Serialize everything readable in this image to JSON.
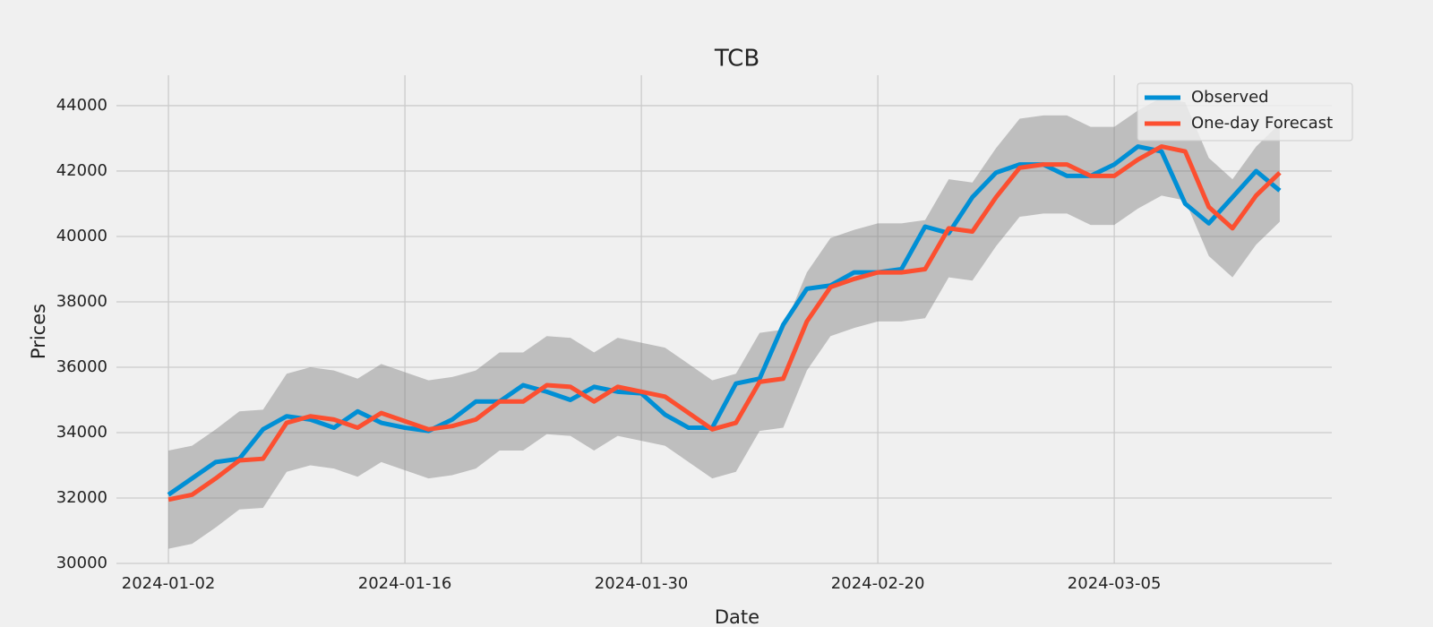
{
  "chart_data": {
    "type": "line",
    "title": "TCB",
    "x_label": "Date",
    "y_label": "Prices",
    "categories": [
      "2024-01-02",
      null,
      null,
      null,
      null,
      null,
      null,
      null,
      null,
      null,
      "2024-01-16",
      null,
      null,
      null,
      null,
      null,
      null,
      null,
      null,
      null,
      "2024-01-30",
      null,
      null,
      null,
      null,
      null,
      null,
      null,
      null,
      null,
      "2024-02-20",
      null,
      null,
      null,
      null,
      null,
      null,
      null,
      null,
      null,
      "2024-03-05",
      null,
      null,
      null,
      null,
      null,
      null,
      null
    ],
    "series": [
      {
        "name": "Observed",
        "color": "#008fd5",
        "values": [
          32100,
          32600,
          33100,
          33200,
          34100,
          34500,
          34400,
          34150,
          34650,
          34300,
          34150,
          34050,
          34400,
          34950,
          34950,
          35450,
          35250,
          35000,
          35400,
          35250,
          35200,
          34550,
          34150,
          34150,
          35500,
          35650,
          37300,
          38400,
          38500,
          38900,
          38900,
          39000,
          40300,
          40100,
          41200,
          41950,
          42200,
          42200,
          41850,
          41850,
          42200,
          42750,
          42600,
          41000,
          40400,
          41200,
          42000,
          41400
        ]
      },
      {
        "name": "One-day Forecast",
        "color": "#fc4f30",
        "values": [
          31950,
          32100,
          32600,
          33150,
          33200,
          34300,
          34500,
          34400,
          34150,
          34600,
          34350,
          34100,
          34200,
          34400,
          34950,
          34950,
          35450,
          35400,
          34950,
          35400,
          35250,
          35100,
          34600,
          34100,
          34300,
          35550,
          35650,
          37400,
          38450,
          38700,
          38900,
          38900,
          39000,
          40250,
          40150,
          41200,
          42100,
          42200,
          42200,
          41850,
          41850,
          42350,
          42750,
          42600,
          40900,
          40250,
          41250,
          41950
        ]
      }
    ],
    "band": {
      "color": "#808080",
      "lower": [
        30450,
        30600,
        31100,
        31650,
        31700,
        32800,
        33000,
        32900,
        32650,
        33100,
        32850,
        32600,
        32700,
        32900,
        33450,
        33450,
        33950,
        33900,
        33450,
        33900,
        33750,
        33600,
        33100,
        32600,
        32800,
        34050,
        34150,
        35900,
        36950,
        37200,
        37400,
        37400,
        37500,
        38750,
        38650,
        39700,
        40600,
        40700,
        40700,
        40350,
        40350,
        40850,
        41250,
        41100,
        39400,
        38750,
        39750,
        40450
      ],
      "upper": [
        33450,
        33600,
        34100,
        34650,
        34700,
        35800,
        36000,
        35900,
        35650,
        36100,
        35850,
        35600,
        35700,
        35900,
        36450,
        36450,
        36950,
        36900,
        36450,
        36900,
        36750,
        36600,
        36100,
        35600,
        35800,
        37050,
        37150,
        38900,
        39950,
        40200,
        40400,
        40400,
        40500,
        41750,
        41650,
        42700,
        43600,
        43700,
        43700,
        43350,
        43350,
        43850,
        44250,
        44100,
        42400,
        41750,
        42750,
        43450
      ]
    },
    "ylim": [
      30000,
      44930
    ],
    "yticks": [
      30000,
      32000,
      34000,
      36000,
      38000,
      40000,
      42000,
      44000
    ],
    "grid": true,
    "legend": "upper right"
  }
}
